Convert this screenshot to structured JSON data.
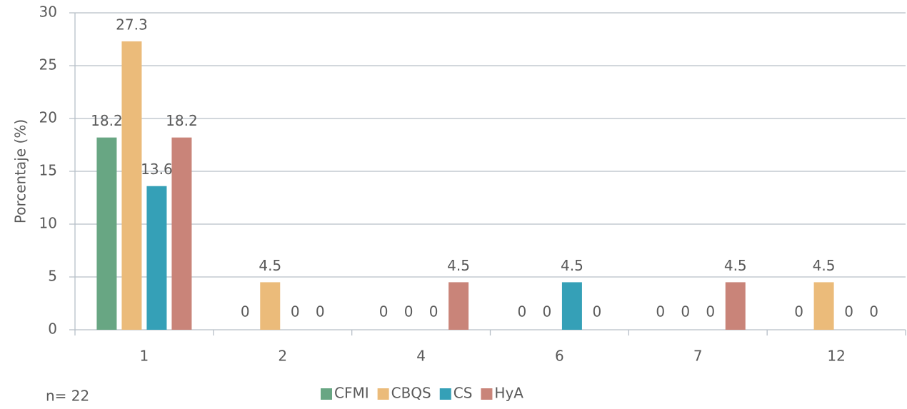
{
  "chart_data": {
    "type": "bar",
    "y_label": "Porcentaje (%)",
    "annotation": "n= 22",
    "categories": [
      "1",
      "2",
      "4",
      "6",
      "7",
      "12"
    ],
    "series": [
      {
        "name": "CFMI",
        "color": "#68a683",
        "values": [
          18.2,
          0,
          0,
          0,
          0,
          0
        ]
      },
      {
        "name": "CBQS",
        "color": "#ebbb7a",
        "values": [
          27.3,
          4.5,
          0,
          0,
          0,
          4.5
        ]
      },
      {
        "name": "CS",
        "color": "#35a0b7",
        "values": [
          13.6,
          0,
          0,
          4.5,
          0,
          0
        ]
      },
      {
        "name": "HyA",
        "color": "#c98479",
        "values": [
          18.2,
          0,
          4.5,
          0,
          4.5,
          0
        ]
      }
    ],
    "ylim": [
      0,
      30
    ],
    "yticks": [
      0,
      5,
      10,
      15,
      20,
      25,
      30
    ],
    "grid": true,
    "legend": "bottom"
  }
}
